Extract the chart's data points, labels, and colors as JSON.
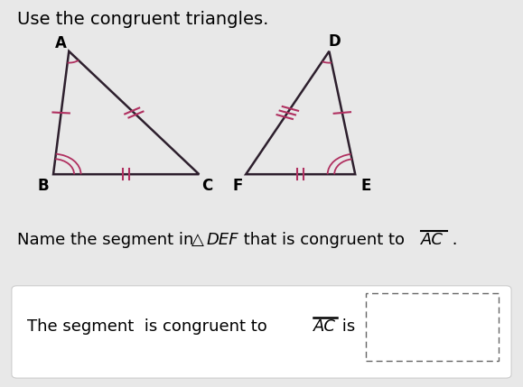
{
  "bg_color": "#e8e8e8",
  "title_text": "Use the congruent triangles.",
  "triangle_ABC": {
    "A": [
      0.13,
      0.87
    ],
    "B": [
      0.1,
      0.55
    ],
    "C": [
      0.38,
      0.55
    ],
    "color": "#2d1f2d",
    "linewidth": 1.8
  },
  "triangle_DEF": {
    "D": [
      0.63,
      0.87
    ],
    "E": [
      0.68,
      0.55
    ],
    "F": [
      0.47,
      0.55
    ],
    "color": "#2d1f2d",
    "linewidth": 1.8
  },
  "label_fontsize": 12,
  "title_fontsize": 14,
  "question_fontsize": 13,
  "answer_fontsize": 13
}
